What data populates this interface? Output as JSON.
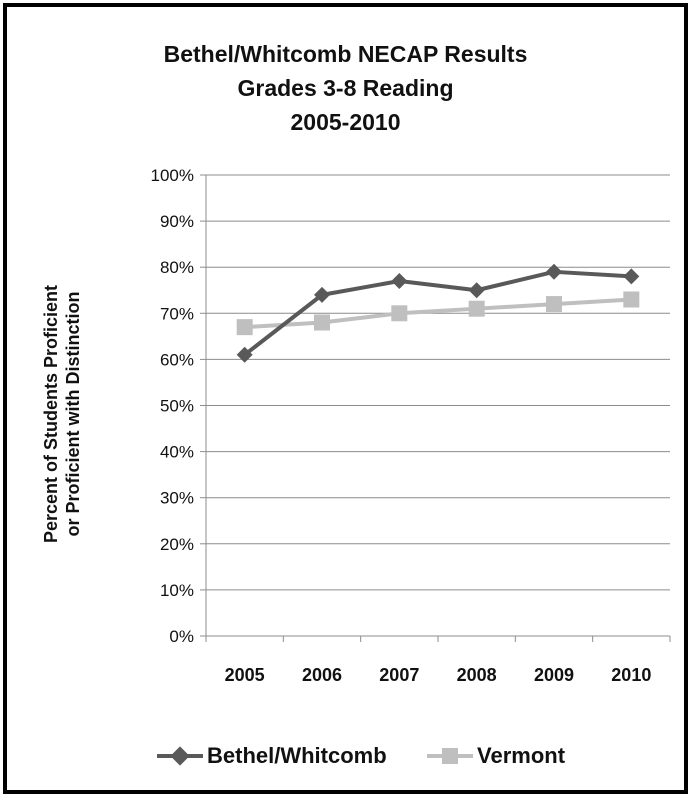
{
  "chart_data": {
    "type": "line",
    "title_lines": [
      "Bethel/Whitcomb NECAP Results",
      "Grades 3-8 Reading",
      "2005-2010"
    ],
    "ylabel_lines": [
      "Percent of Students Proficient",
      "or Proficient with Distinction"
    ],
    "xlabel": "",
    "categories": [
      "2005",
      "2006",
      "2007",
      "2008",
      "2009",
      "2010"
    ],
    "y_ticks": [
      "0%",
      "10%",
      "20%",
      "30%",
      "40%",
      "50%",
      "60%",
      "70%",
      "80%",
      "90%",
      "100%"
    ],
    "ylim": [
      0,
      100
    ],
    "grid": true,
    "legend_position": "bottom",
    "series": [
      {
        "name": "Bethel/Whitcomb",
        "values": [
          61,
          74,
          77,
          75,
          79,
          78
        ],
        "color": "#595959",
        "marker": "diamond"
      },
      {
        "name": "Vermont",
        "values": [
          67,
          68,
          70,
          71,
          72,
          73
        ],
        "color": "#BFBFBF",
        "marker": "square"
      }
    ]
  }
}
